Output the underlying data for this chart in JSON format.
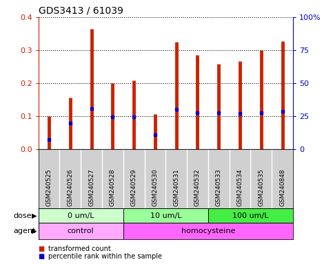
{
  "title": "GDS3413 / 61039",
  "samples": [
    "GSM240525",
    "GSM240526",
    "GSM240527",
    "GSM240528",
    "GSM240529",
    "GSM240530",
    "GSM240531",
    "GSM240532",
    "GSM240533",
    "GSM240534",
    "GSM240535",
    "GSM240848"
  ],
  "red_values": [
    0.1,
    0.157,
    0.365,
    0.2,
    0.208,
    0.106,
    0.325,
    0.285,
    0.258,
    0.267,
    0.3,
    0.327
  ],
  "blue_values": [
    0.03,
    0.08,
    0.122,
    0.097,
    0.097,
    0.043,
    0.12,
    0.11,
    0.11,
    0.108,
    0.11,
    0.115
  ],
  "ylim_left": [
    0,
    0.4
  ],
  "ylim_right": [
    0,
    100
  ],
  "yticks_left": [
    0,
    0.1,
    0.2,
    0.3,
    0.4
  ],
  "yticks_right": [
    0,
    25,
    50,
    75,
    100
  ],
  "ytick_labels_right": [
    "0",
    "25",
    "50",
    "75",
    "100%"
  ],
  "left_color": "#cc2200",
  "right_color": "#0000cc",
  "bar_color": "#cc2200",
  "marker_color": "#0000cc",
  "dose_groups": [
    {
      "label": "0 um/L",
      "start": 0,
      "end": 3,
      "color": "#ccffcc"
    },
    {
      "label": "10 um/L",
      "start": 4,
      "end": 7,
      "color": "#99ff99"
    },
    {
      "label": "100 um/L",
      "start": 8,
      "end": 11,
      "color": "#44ee44"
    }
  ],
  "agent_groups": [
    {
      "label": "control",
      "start": 0,
      "end": 3,
      "color": "#ffaaff"
    },
    {
      "label": "homocysteine",
      "start": 4,
      "end": 11,
      "color": "#ff66ff"
    }
  ],
  "dose_label": "dose",
  "agent_label": "agent",
  "legend_red": "transformed count",
  "legend_blue": "percentile rank within the sample",
  "plot_bg": "#ffffff",
  "label_bg": "#d0d0d0"
}
